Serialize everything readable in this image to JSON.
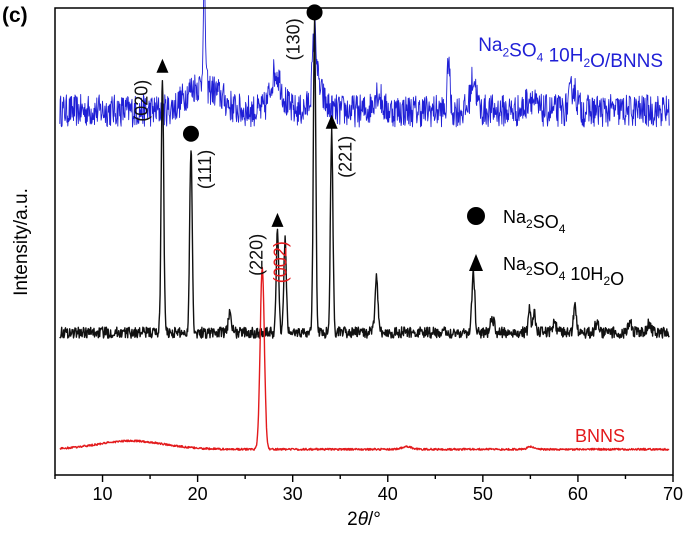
{
  "panel_label": "(c)",
  "chart_data": {
    "type": "line",
    "xlabel_prefix": "2",
    "xlabel_var": "θ",
    "xlabel_suffix": "/°",
    "ylabel": "Intensity/a.u.",
    "xlim": [
      5,
      70
    ],
    "xticks": [
      10,
      20,
      30,
      40,
      50,
      60,
      70
    ],
    "yticks": [],
    "grid": false,
    "series": [
      {
        "name": "Na2SO4 10H2O/BNNS",
        "label_parts": [
          [
            "Na",
            ""
          ],
          [
            "2",
            "sub"
          ],
          [
            "SO",
            ""
          ],
          [
            "4",
            "sub"
          ],
          [
            " 10H",
            ""
          ],
          [
            "2",
            "sub"
          ],
          [
            "O/BNNS",
            ""
          ]
        ],
        "color": "#1f1fd6",
        "baseline": 0.78,
        "noise": 0.035,
        "peaks": [
          [
            19.8,
            0.05,
            1.2
          ],
          [
            20.7,
            0.22,
            0.12
          ],
          [
            22.0,
            0.03,
            1.0
          ],
          [
            28.1,
            0.06,
            0.5
          ],
          [
            28.6,
            0.03,
            0.6
          ],
          [
            32.3,
            0.13,
            0.2
          ],
          [
            32.6,
            0.05,
            0.6
          ],
          [
            38.9,
            0.04,
            0.4
          ],
          [
            46.4,
            0.12,
            0.12
          ],
          [
            49.0,
            0.07,
            0.3
          ],
          [
            55.0,
            0.03,
            0.4
          ],
          [
            59.5,
            0.05,
            0.35
          ]
        ]
      },
      {
        "name": "Na2SO4 10H2O",
        "color": "#111111",
        "baseline": 0.305,
        "noise": 0.012,
        "peaks": [
          [
            16.3,
            0.55,
            0.13
          ],
          [
            19.3,
            0.4,
            0.13
          ],
          [
            23.4,
            0.05,
            0.15
          ],
          [
            28.4,
            0.22,
            0.13
          ],
          [
            29.2,
            0.2,
            0.13
          ],
          [
            32.3,
            0.66,
            0.13
          ],
          [
            34.1,
            0.43,
            0.13
          ],
          [
            38.8,
            0.12,
            0.15
          ],
          [
            49.0,
            0.13,
            0.15
          ],
          [
            51.0,
            0.03,
            0.2
          ],
          [
            54.9,
            0.05,
            0.12
          ],
          [
            55.4,
            0.05,
            0.12
          ],
          [
            57.5,
            0.02,
            0.2
          ],
          [
            59.7,
            0.06,
            0.15
          ],
          [
            62.0,
            0.02,
            0.2
          ],
          [
            65.5,
            0.02,
            0.2
          ],
          [
            67.5,
            0.02,
            0.2
          ]
        ]
      },
      {
        "name": "BNNS",
        "color": "#e31a1c",
        "baseline": 0.055,
        "noise": 0.002,
        "peaks": [
          [
            13.0,
            0.018,
            3.5
          ],
          [
            26.8,
            0.39,
            0.22
          ],
          [
            42.0,
            0.006,
            0.5
          ],
          [
            55.0,
            0.006,
            0.3
          ]
        ]
      }
    ],
    "peak_labels": [
      {
        "text": "(020)",
        "x": 16.3,
        "color": "#111111",
        "marker": "triangle"
      },
      {
        "text": "(111)",
        "x": 19.3,
        "color": "#111111",
        "marker": "circle"
      },
      {
        "text": "(220)",
        "x": 28.4,
        "color": "#111111",
        "marker": "triangle"
      },
      {
        "text": "(130)",
        "x": 32.3,
        "color": "#111111",
        "marker": "circle"
      },
      {
        "text": "(221)",
        "x": 34.1,
        "color": "#111111",
        "marker": "triangle"
      },
      {
        "text": "(002)",
        "x": 26.8,
        "color": "#e31a1c",
        "marker": "none"
      }
    ],
    "legend": {
      "placement": "right",
      "items": [
        {
          "marker": "circle",
          "parts": [
            [
              "Na",
              ""
            ],
            [
              "2",
              "sub"
            ],
            [
              "SO",
              ""
            ],
            [
              "4",
              "sub"
            ]
          ]
        },
        {
          "marker": "triangle",
          "parts": [
            [
              "Na",
              ""
            ],
            [
              "2",
              "sub"
            ],
            [
              "SO",
              ""
            ],
            [
              "4",
              "sub"
            ],
            [
              " 10H",
              ""
            ],
            [
              "2",
              "sub"
            ],
            [
              "O",
              ""
            ]
          ]
        }
      ]
    }
  }
}
